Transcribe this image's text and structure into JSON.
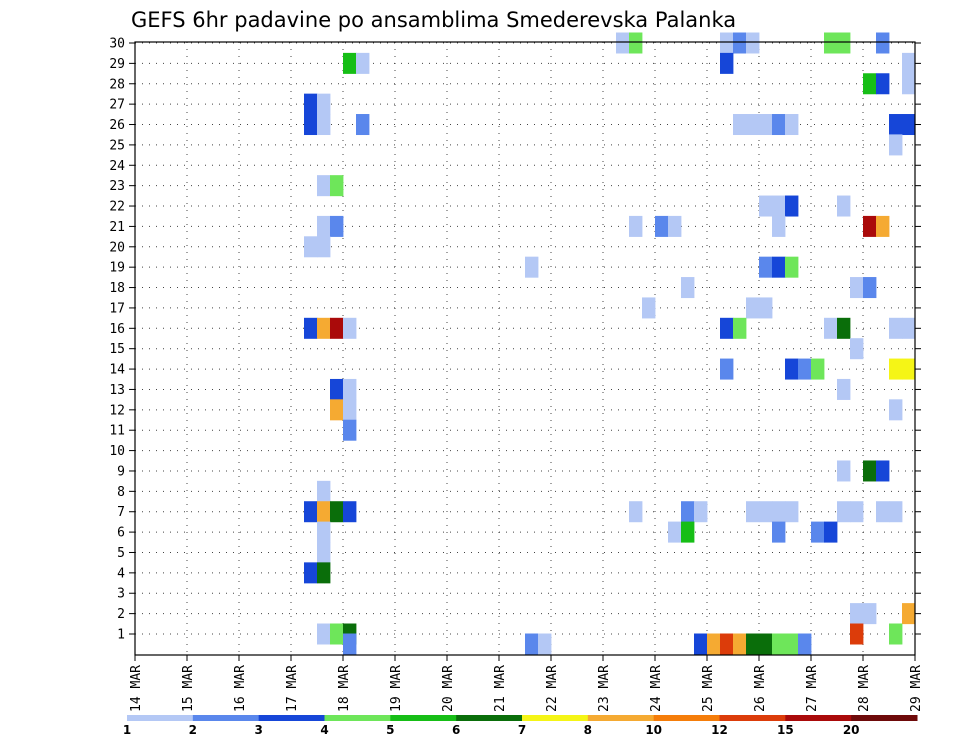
{
  "chart_data": {
    "type": "heatmap",
    "title": "GEFS 6hr padavine po ansamblima Smederevska Palanka",
    "xlabel": "",
    "ylabel": "",
    "x_ticks": [
      "14 MAR",
      "15 MAR",
      "16 MAR",
      "17 MAR",
      "18 MAR",
      "19 MAR",
      "20 MAR",
      "21 MAR",
      "22 MAR",
      "23 MAR",
      "24 MAR",
      "25 MAR",
      "26 MAR",
      "27 MAR",
      "28 MAR",
      "29 MAR"
    ],
    "time_range_days": [
      0,
      15
    ],
    "time_step_hours": 6,
    "members": [
      1,
      30
    ],
    "y_ticks": [
      1,
      2,
      3,
      4,
      5,
      6,
      7,
      8,
      9,
      10,
      11,
      12,
      13,
      14,
      15,
      16,
      17,
      18,
      19,
      20,
      21,
      22,
      23,
      24,
      25,
      26,
      27,
      28,
      29,
      30
    ],
    "grid": "dotted",
    "colorbar": {
      "position": "bottom",
      "labels": [
        "1",
        "2",
        "3",
        "4",
        "5",
        "6",
        "7",
        "8",
        "10",
        "12",
        "15",
        "20"
      ],
      "colors": [
        "#b4c8f5",
        "#5a87ec",
        "#1646d8",
        "#6ee65a",
        "#16be16",
        "#0a6e0a",
        "#f5f516",
        "#f5aa32",
        "#f57d0a",
        "#dc3c0a",
        "#aa0a0a",
        "#6e0a0a"
      ]
    },
    "cells": [
      {
        "m": 30,
        "t": [
          [
            37,
            1
          ],
          [
            38,
            4
          ],
          [
            45,
            1
          ],
          [
            46,
            2
          ],
          [
            47,
            1
          ],
          [
            53,
            4
          ],
          [
            54,
            4
          ],
          [
            57,
            2
          ]
        ]
      },
      {
        "m": 29,
        "t": [
          [
            16,
            5
          ],
          [
            17,
            1
          ],
          [
            45,
            3
          ],
          [
            59,
            1
          ]
        ]
      },
      {
        "m": 28,
        "t": [
          [
            56,
            5
          ],
          [
            57,
            3
          ],
          [
            59,
            1
          ]
        ]
      },
      {
        "m": 27,
        "t": [
          [
            13,
            3
          ],
          [
            14,
            1
          ]
        ]
      },
      {
        "m": 26,
        "t": [
          [
            13,
            3
          ],
          [
            14,
            1
          ],
          [
            17,
            2
          ],
          [
            46,
            1
          ],
          [
            47,
            1
          ],
          [
            48,
            1
          ],
          [
            49,
            2
          ],
          [
            50,
            1
          ],
          [
            58,
            3
          ],
          [
            59,
            3
          ]
        ]
      },
      {
        "m": 25,
        "t": [
          [
            58,
            1
          ]
        ]
      },
      {
        "m": 23,
        "t": [
          [
            14,
            1
          ],
          [
            15,
            4
          ]
        ]
      },
      {
        "m": 22,
        "t": [
          [
            48,
            1
          ],
          [
            49,
            1
          ],
          [
            50,
            3
          ],
          [
            54,
            1
          ]
        ]
      },
      {
        "m": 21,
        "t": [
          [
            14,
            1
          ],
          [
            15,
            2
          ],
          [
            38,
            1
          ],
          [
            40,
            2
          ],
          [
            41,
            1
          ],
          [
            49,
            1
          ],
          [
            56,
            11
          ],
          [
            57,
            8
          ]
        ]
      },
      {
        "m": 20,
        "t": [
          [
            13,
            1
          ],
          [
            14,
            1
          ]
        ]
      },
      {
        "m": 19,
        "t": [
          [
            30,
            1
          ],
          [
            48,
            2
          ],
          [
            49,
            3
          ],
          [
            50,
            4
          ]
        ]
      },
      {
        "m": 18,
        "t": [
          [
            42,
            1
          ],
          [
            55,
            1
          ],
          [
            56,
            2
          ]
        ]
      },
      {
        "m": 17,
        "t": [
          [
            39,
            1
          ],
          [
            47,
            1
          ],
          [
            48,
            1
          ]
        ]
      },
      {
        "m": 16,
        "t": [
          [
            13,
            3
          ],
          [
            14,
            8
          ],
          [
            15,
            11
          ],
          [
            16,
            1
          ],
          [
            45,
            3
          ],
          [
            46,
            4
          ],
          [
            53,
            1
          ],
          [
            54,
            6
          ],
          [
            58,
            1
          ],
          [
            59,
            1
          ]
        ]
      },
      {
        "m": 15,
        "t": [
          [
            55,
            1
          ]
        ]
      },
      {
        "m": 14,
        "t": [
          [
            45,
            2
          ],
          [
            50,
            3
          ],
          [
            51,
            2
          ],
          [
            52,
            4
          ],
          [
            58,
            7
          ],
          [
            59,
            7
          ]
        ]
      },
      {
        "m": 13,
        "t": [
          [
            15,
            3
          ],
          [
            16,
            1
          ],
          [
            54,
            1
          ]
        ]
      },
      {
        "m": 12,
        "t": [
          [
            15,
            8
          ],
          [
            16,
            1
          ],
          [
            58,
            1
          ]
        ]
      },
      {
        "m": 11,
        "t": [
          [
            16,
            2
          ]
        ]
      },
      {
        "m": 9,
        "t": [
          [
            54,
            1
          ],
          [
            56,
            6
          ],
          [
            57,
            3
          ]
        ]
      },
      {
        "m": 8,
        "t": [
          [
            14,
            1
          ]
        ]
      },
      {
        "m": 7,
        "t": [
          [
            13,
            3
          ],
          [
            14,
            8
          ],
          [
            15,
            6
          ],
          [
            16,
            3
          ],
          [
            38,
            1
          ],
          [
            42,
            2
          ],
          [
            43,
            1
          ],
          [
            47,
            1
          ],
          [
            48,
            1
          ],
          [
            49,
            1
          ],
          [
            50,
            1
          ],
          [
            54,
            1
          ],
          [
            55,
            1
          ],
          [
            57,
            1
          ],
          [
            58,
            1
          ]
        ]
      },
      {
        "m": 6,
        "t": [
          [
            14,
            1
          ],
          [
            41,
            1
          ],
          [
            42,
            5
          ],
          [
            49,
            2
          ],
          [
            52,
            2
          ],
          [
            53,
            3
          ]
        ]
      },
      {
        "m": 5,
        "t": [
          [
            14,
            1
          ]
        ]
      },
      {
        "m": 4,
        "t": [
          [
            13,
            3
          ],
          [
            14,
            6
          ]
        ]
      },
      {
        "m": 2,
        "t": [
          [
            55,
            1
          ],
          [
            56,
            1
          ],
          [
            59,
            8
          ]
        ]
      },
      {
        "m": 1,
        "t": [
          [
            14,
            1
          ],
          [
            15,
            4
          ],
          [
            16,
            6
          ],
          [
            55,
            10
          ],
          [
            58,
            4
          ]
        ]
      },
      {
        "m": 0,
        "t": [
          [
            16,
            2
          ],
          [
            30,
            2
          ],
          [
            31,
            1
          ],
          [
            43,
            3
          ],
          [
            44,
            8
          ],
          [
            45,
            10
          ],
          [
            46,
            8
          ],
          [
            47,
            6
          ],
          [
            48,
            6
          ],
          [
            49,
            4
          ],
          [
            50,
            4
          ],
          [
            51,
            2
          ]
        ]
      }
    ]
  }
}
